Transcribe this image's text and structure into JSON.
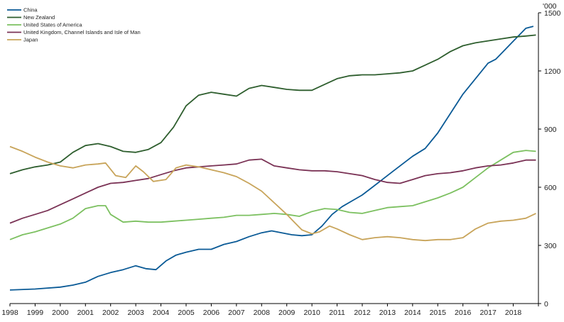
{
  "chart_data": {
    "type": "line",
    "title": "",
    "xlabel": "",
    "ylabel": "'000",
    "ylim": [
      0,
      1500
    ],
    "xlim": [
      1998.0,
      2019.0
    ],
    "y_ticks": [
      0,
      300,
      600,
      900,
      1200,
      1500
    ],
    "x_ticks": [
      "1998",
      "1999",
      "2000",
      "2001",
      "2002",
      "2003",
      "2004",
      "2005",
      "2006",
      "2007",
      "2008",
      "2009",
      "2010",
      "2011",
      "2012",
      "2013",
      "2014",
      "2015",
      "2016",
      "2017",
      "2018"
    ],
    "grid": false,
    "legend_position": "top-left",
    "series": [
      {
        "name": "China",
        "color": "#0a5a96",
        "x": [
          1998.0,
          1999.0,
          2000.0,
          2000.5,
          2001.0,
          2001.5,
          2002.0,
          2002.5,
          2003.0,
          2003.4,
          2003.8,
          2004.2,
          2004.6,
          2005.0,
          2005.5,
          2006.0,
          2006.5,
          2007.0,
          2007.5,
          2008.0,
          2008.4,
          2008.8,
          2009.2,
          2009.6,
          2010.0,
          2010.4,
          2010.8,
          2011.2,
          2011.6,
          2012.0,
          2012.4,
          2012.8,
          2013.2,
          2013.6,
          2014.0,
          2014.5,
          2015.0,
          2015.5,
          2016.0,
          2016.5,
          2017.0,
          2017.3,
          2017.6,
          2017.9,
          2018.2,
          2018.5,
          2018.8
        ],
        "values": [
          70,
          75,
          85,
          95,
          110,
          140,
          160,
          175,
          195,
          180,
          175,
          220,
          250,
          265,
          280,
          280,
          305,
          320,
          345,
          365,
          375,
          365,
          355,
          350,
          355,
          400,
          460,
          500,
          530,
          560,
          600,
          640,
          680,
          720,
          760,
          800,
          880,
          980,
          1080,
          1160,
          1240,
          1260,
          1300,
          1340,
          1380,
          1420,
          1430
        ]
      },
      {
        "name": "New Zealand",
        "color": "#2e5e2e",
        "x": [
          1998.0,
          1998.5,
          1999.0,
          1999.5,
          2000.0,
          2000.5,
          2001.0,
          2001.5,
          2002.0,
          2002.5,
          2003.0,
          2003.5,
          2004.0,
          2004.5,
          2005.0,
          2005.5,
          2006.0,
          2006.5,
          2007.0,
          2007.5,
          2008.0,
          2008.5,
          2009.0,
          2009.5,
          2010.0,
          2010.5,
          2011.0,
          2011.5,
          2012.0,
          2012.5,
          2013.0,
          2013.5,
          2014.0,
          2014.5,
          2015.0,
          2015.5,
          2016.0,
          2016.5,
          2017.0,
          2017.5,
          2018.0,
          2018.5,
          2018.9
        ],
        "values": [
          670,
          690,
          705,
          715,
          730,
          780,
          815,
          825,
          810,
          785,
          780,
          795,
          830,
          910,
          1020,
          1075,
          1090,
          1080,
          1070,
          1110,
          1125,
          1115,
          1105,
          1100,
          1100,
          1130,
          1160,
          1175,
          1180,
          1180,
          1185,
          1190,
          1200,
          1230,
          1260,
          1300,
          1330,
          1345,
          1355,
          1365,
          1375,
          1380,
          1385
        ]
      },
      {
        "name": "United States of America",
        "color": "#7cc060",
        "x": [
          1998.0,
          1998.5,
          1999.0,
          1999.5,
          2000.0,
          2000.5,
          2001.0,
          2001.5,
          2001.8,
          2002.0,
          2002.5,
          2003.0,
          2003.5,
          2004.0,
          2004.5,
          2005.0,
          2005.5,
          2006.0,
          2006.5,
          2007.0,
          2007.5,
          2008.0,
          2008.5,
          2009.0,
          2009.5,
          2010.0,
          2010.5,
          2011.0,
          2011.5,
          2012.0,
          2012.5,
          2013.0,
          2013.5,
          2014.0,
          2014.5,
          2015.0,
          2015.5,
          2016.0,
          2016.5,
          2017.0,
          2017.5,
          2018.0,
          2018.5,
          2018.9
        ],
        "values": [
          330,
          355,
          370,
          390,
          410,
          440,
          490,
          505,
          505,
          460,
          420,
          425,
          420,
          420,
          425,
          430,
          435,
          440,
          445,
          455,
          455,
          460,
          465,
          460,
          450,
          475,
          490,
          485,
          470,
          465,
          480,
          495,
          500,
          505,
          525,
          545,
          570,
          600,
          650,
          700,
          740,
          780,
          790,
          785
        ]
      },
      {
        "name": "United Kingdom, Channel Islands and Isle of Man",
        "color": "#7a3255",
        "x": [
          1998.0,
          1998.5,
          1999.0,
          1999.5,
          2000.0,
          2000.5,
          2001.0,
          2001.5,
          2002.0,
          2002.5,
          2003.0,
          2003.5,
          2004.0,
          2004.5,
          2005.0,
          2005.5,
          2006.0,
          2006.5,
          2007.0,
          2007.5,
          2008.0,
          2008.5,
          2009.0,
          2009.5,
          2010.0,
          2010.5,
          2011.0,
          2011.5,
          2012.0,
          2012.5,
          2013.0,
          2013.5,
          2014.0,
          2014.5,
          2015.0,
          2015.5,
          2016.0,
          2016.5,
          2017.0,
          2017.5,
          2018.0,
          2018.5,
          2018.9
        ],
        "values": [
          415,
          440,
          460,
          480,
          510,
          540,
          570,
          600,
          620,
          625,
          635,
          645,
          665,
          685,
          700,
          705,
          710,
          715,
          720,
          740,
          745,
          710,
          700,
          690,
          685,
          685,
          680,
          670,
          660,
          640,
          625,
          620,
          640,
          660,
          670,
          675,
          685,
          700,
          710,
          715,
          725,
          740,
          740
        ]
      },
      {
        "name": "Japan",
        "color": "#c8a45a",
        "x": [
          1998.0,
          1998.5,
          1999.0,
          1999.5,
          2000.0,
          2000.5,
          2001.0,
          2001.5,
          2001.8,
          2002.2,
          2002.6,
          2003.0,
          2003.3,
          2003.7,
          2004.2,
          2004.6,
          2005.0,
          2005.5,
          2006.0,
          2006.5,
          2007.0,
          2007.5,
          2008.0,
          2008.5,
          2009.0,
          2009.3,
          2009.6,
          2010.0,
          2010.3,
          2010.7,
          2011.0,
          2011.5,
          2012.0,
          2012.5,
          2013.0,
          2013.5,
          2014.0,
          2014.5,
          2015.0,
          2015.5,
          2016.0,
          2016.5,
          2017.0,
          2017.5,
          2018.0,
          2018.5,
          2018.9
        ],
        "values": [
          810,
          785,
          755,
          730,
          710,
          700,
          715,
          720,
          725,
          660,
          650,
          710,
          680,
          630,
          640,
          700,
          715,
          705,
          690,
          675,
          655,
          620,
          580,
          520,
          460,
          420,
          380,
          360,
          370,
          400,
          385,
          355,
          330,
          340,
          345,
          340,
          330,
          325,
          330,
          330,
          340,
          385,
          415,
          425,
          430,
          440,
          465
        ]
      }
    ]
  }
}
